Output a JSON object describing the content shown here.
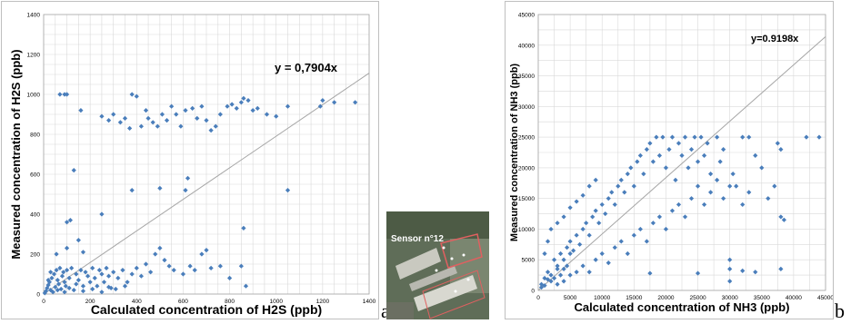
{
  "chart_data": [
    {
      "type": "scatter",
      "panel_letter": "a",
      "xlabel": "Calculated concentration of H2S  (ppb)",
      "ylabel": "Measured concentration of H2S (ppb)",
      "equation": "y = 0,7904x",
      "slope": 0.7904,
      "xlim": [
        0,
        1400
      ],
      "ylim": [
        0,
        1400
      ],
      "xticks": [
        0,
        200,
        400,
        600,
        800,
        1000,
        1200,
        1400
      ],
      "yticks": [
        0,
        200,
        400,
        600,
        800,
        1000,
        1200,
        1400
      ],
      "grid": true,
      "marker_color": "#4a7ebb",
      "line_color": "#a6a6a6",
      "points": [
        [
          70,
          1000
        ],
        [
          90,
          1000
        ],
        [
          100,
          1000
        ],
        [
          160,
          920
        ],
        [
          250,
          890
        ],
        [
          280,
          870
        ],
        [
          300,
          900
        ],
        [
          330,
          860
        ],
        [
          350,
          880
        ],
        [
          370,
          830
        ],
        [
          380,
          1000
        ],
        [
          400,
          990
        ],
        [
          420,
          840
        ],
        [
          440,
          920
        ],
        [
          450,
          880
        ],
        [
          470,
          860
        ],
        [
          490,
          840
        ],
        [
          510,
          900
        ],
        [
          530,
          870
        ],
        [
          550,
          940
        ],
        [
          570,
          900
        ],
        [
          590,
          840
        ],
        [
          610,
          920
        ],
        [
          640,
          930
        ],
        [
          660,
          880
        ],
        [
          680,
          940
        ],
        [
          700,
          870
        ],
        [
          720,
          820
        ],
        [
          740,
          840
        ],
        [
          760,
          900
        ],
        [
          790,
          940
        ],
        [
          810,
          950
        ],
        [
          830,
          930
        ],
        [
          850,
          960
        ],
        [
          860,
          980
        ],
        [
          880,
          970
        ],
        [
          900,
          920
        ],
        [
          920,
          930
        ],
        [
          960,
          900
        ],
        [
          1000,
          890
        ],
        [
          1050,
          940
        ],
        [
          1190,
          940
        ],
        [
          1200,
          970
        ],
        [
          1250,
          960
        ],
        [
          1340,
          960
        ],
        [
          130,
          620
        ],
        [
          100,
          360
        ],
        [
          115,
          370
        ],
        [
          250,
          400
        ],
        [
          380,
          520
        ],
        [
          500,
          530
        ],
        [
          610,
          520
        ],
        [
          620,
          580
        ],
        [
          1050,
          520
        ],
        [
          860,
          330
        ],
        [
          150,
          270
        ],
        [
          55,
          200
        ],
        [
          100,
          230
        ],
        [
          170,
          210
        ],
        [
          5,
          5
        ],
        [
          10,
          15
        ],
        [
          15,
          30
        ],
        [
          20,
          45
        ],
        [
          25,
          60
        ],
        [
          30,
          20
        ],
        [
          35,
          80
        ],
        [
          40,
          10
        ],
        [
          45,
          100
        ],
        [
          50,
          35
        ],
        [
          55,
          120
        ],
        [
          60,
          70
        ],
        [
          65,
          50
        ],
        [
          70,
          130
        ],
        [
          75,
          25
        ],
        [
          80,
          90
        ],
        [
          85,
          110
        ],
        [
          90,
          60
        ],
        [
          95,
          40
        ],
        [
          100,
          120
        ],
        [
          110,
          80
        ],
        [
          120,
          130
        ],
        [
          130,
          20
        ],
        [
          140,
          100
        ],
        [
          150,
          70
        ],
        [
          160,
          120
        ],
        [
          170,
          40
        ],
        [
          180,
          110
        ],
        [
          190,
          90
        ],
        [
          200,
          60
        ],
        [
          210,
          130
        ],
        [
          220,
          80
        ],
        [
          230,
          40
        ],
        [
          240,
          120
        ],
        [
          250,
          100
        ],
        [
          260,
          60
        ],
        [
          270,
          130
        ],
        [
          280,
          90
        ],
        [
          290,
          30
        ],
        [
          300,
          110
        ],
        [
          320,
          80
        ],
        [
          340,
          120
        ],
        [
          360,
          60
        ],
        [
          380,
          100
        ],
        [
          400,
          130
        ],
        [
          420,
          90
        ],
        [
          440,
          150
        ],
        [
          460,
          110
        ],
        [
          480,
          200
        ],
        [
          500,
          230
        ],
        [
          520,
          170
        ],
        [
          540,
          140
        ],
        [
          560,
          120
        ],
        [
          600,
          100
        ],
        [
          630,
          140
        ],
        [
          650,
          120
        ],
        [
          680,
          200
        ],
        [
          700,
          220
        ],
        [
          720,
          130
        ],
        [
          760,
          140
        ],
        [
          800,
          80
        ],
        [
          850,
          140
        ],
        [
          870,
          40
        ],
        [
          20,
          70
        ],
        [
          30,
          110
        ],
        [
          60,
          20
        ],
        [
          90,
          10
        ],
        [
          110,
          30
        ],
        [
          140,
          50
        ],
        [
          170,
          15
        ],
        [
          210,
          25
        ],
        [
          250,
          10
        ],
        [
          280,
          35
        ],
        [
          310,
          25
        ],
        [
          350,
          40
        ]
      ]
    },
    {
      "type": "scatter",
      "panel_letter": "b",
      "xlabel": "Calculated concentration of NH3  (ppb)",
      "ylabel": "Measured concentration of NH3 (ppb)",
      "equation": "y=0.9198x",
      "slope": 0.9198,
      "xlim": [
        0,
        45000
      ],
      "ylim": [
        0,
        45000
      ],
      "xticks": [
        0,
        5000,
        10000,
        15000,
        20000,
        25000,
        30000,
        35000,
        40000,
        45000
      ],
      "yticks": [
        0,
        5000,
        10000,
        15000,
        20000,
        25000,
        30000,
        35000,
        40000,
        45000
      ],
      "grid": true,
      "marker_color": "#4a7ebb",
      "line_color": "#a6a6a6",
      "points": [
        [
          500,
          500
        ],
        [
          1000,
          2000
        ],
        [
          1500,
          3000
        ],
        [
          2000,
          1500
        ],
        [
          2500,
          5000
        ],
        [
          3000,
          4000
        ],
        [
          3500,
          6000
        ],
        [
          4000,
          3500
        ],
        [
          4500,
          7000
        ],
        [
          5000,
          8000
        ],
        [
          5500,
          6500
        ],
        [
          6000,
          9000
        ],
        [
          6500,
          7500
        ],
        [
          7000,
          10000
        ],
        [
          7500,
          11000
        ],
        [
          8000,
          9000
        ],
        [
          8500,
          12000
        ],
        [
          9000,
          13000
        ],
        [
          9500,
          11000
        ],
        [
          10000,
          14000
        ],
        [
          10500,
          12500
        ],
        [
          11000,
          15000
        ],
        [
          11500,
          16000
        ],
        [
          12000,
          14000
        ],
        [
          12500,
          17000
        ],
        [
          13000,
          18000
        ],
        [
          13500,
          16000
        ],
        [
          14000,
          19000
        ],
        [
          14500,
          20000
        ],
        [
          15000,
          17000
        ],
        [
          15500,
          21000
        ],
        [
          16000,
          22000
        ],
        [
          16500,
          19000
        ],
        [
          17000,
          23000
        ],
        [
          17500,
          24000
        ],
        [
          18000,
          21000
        ],
        [
          18500,
          25000
        ],
        [
          19000,
          22000
        ],
        [
          19500,
          25000
        ],
        [
          20000,
          20000
        ],
        [
          20500,
          23000
        ],
        [
          21000,
          25000
        ],
        [
          21500,
          18000
        ],
        [
          22000,
          24000
        ],
        [
          22500,
          22000
        ],
        [
          23000,
          25000
        ],
        [
          23500,
          20000
        ],
        [
          24000,
          23000
        ],
        [
          24500,
          25000
        ],
        [
          25000,
          21000
        ],
        [
          25500,
          25000
        ],
        [
          26000,
          22000
        ],
        [
          26500,
          24000
        ],
        [
          27000,
          19000
        ],
        [
          28000,
          25000
        ],
        [
          28500,
          21000
        ],
        [
          29000,
          23000
        ],
        [
          30000,
          17000
        ],
        [
          30500,
          19000
        ],
        [
          32000,
          25000
        ],
        [
          33000,
          25000
        ],
        [
          34000,
          22000
        ],
        [
          35000,
          20000
        ],
        [
          36000,
          15000
        ],
        [
          37000,
          17000
        ],
        [
          38000,
          12000
        ],
        [
          38500,
          11500
        ],
        [
          37500,
          24000
        ],
        [
          38000,
          23000
        ],
        [
          42000,
          25000
        ],
        [
          44000,
          25000
        ],
        [
          38000,
          3500
        ],
        [
          30000,
          5000
        ],
        [
          30000,
          3500
        ],
        [
          32000,
          3200
        ],
        [
          34000,
          3000
        ],
        [
          25000,
          2800
        ],
        [
          17500,
          2800
        ],
        [
          30000,
          1500
        ],
        [
          1000,
          6000
        ],
        [
          1500,
          8000
        ],
        [
          2000,
          10000
        ],
        [
          3000,
          11000
        ],
        [
          4000,
          12000
        ],
        [
          5000,
          13500
        ],
        [
          6000,
          14500
        ],
        [
          7000,
          15500
        ],
        [
          8000,
          17000
        ],
        [
          9000,
          18000
        ],
        [
          3000,
          1000
        ],
        [
          4000,
          1500
        ],
        [
          5000,
          2500
        ],
        [
          6000,
          3000
        ],
        [
          7000,
          4000
        ],
        [
          8000,
          3000
        ],
        [
          9000,
          5000
        ],
        [
          10000,
          6000
        ],
        [
          11000,
          4500
        ],
        [
          12000,
          7000
        ],
        [
          13000,
          8000
        ],
        [
          14000,
          6000
        ],
        [
          15000,
          9000
        ],
        [
          16000,
          10000
        ],
        [
          17000,
          8000
        ],
        [
          18000,
          11000
        ],
        [
          19000,
          12000
        ],
        [
          20000,
          10000
        ],
        [
          21000,
          13000
        ],
        [
          22000,
          14000
        ],
        [
          23000,
          12000
        ],
        [
          24000,
          15000
        ],
        [
          25000,
          17000
        ],
        [
          26000,
          14000
        ],
        [
          27000,
          16000
        ],
        [
          28000,
          18000
        ],
        [
          29000,
          15000
        ],
        [
          31000,
          17000
        ],
        [
          32000,
          14000
        ],
        [
          33000,
          16000
        ],
        [
          500,
          1000
        ],
        [
          1000,
          800
        ],
        [
          1500,
          1800
        ],
        [
          2000,
          2500
        ],
        [
          2500,
          2000
        ],
        [
          3000,
          3500
        ],
        [
          3500,
          2500
        ],
        [
          4000,
          5000
        ],
        [
          4500,
          4000
        ],
        [
          5000,
          6000
        ]
      ]
    }
  ],
  "inset": {
    "label": "Sensor n°12"
  },
  "letters": {
    "a": "a",
    "b": "b"
  }
}
